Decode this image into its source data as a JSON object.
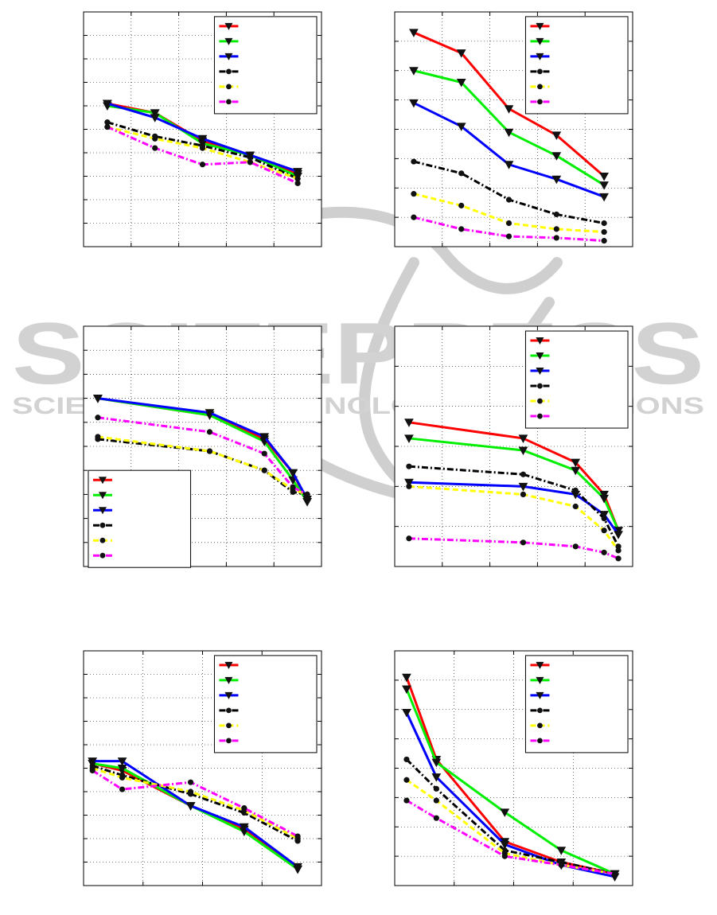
{
  "watermark": {
    "word1": "SCITEPRESS",
    "word2": "SCIENCE AND TECHNOLOGY PUBLICATIONS"
  },
  "series_styles": [
    {
      "color": "#ff0000",
      "dash": "solid",
      "marker": "triangle"
    },
    {
      "color": "#00ee00",
      "dash": "solid",
      "marker": "triangle"
    },
    {
      "color": "#0000ff",
      "dash": "solid",
      "marker": "triangle"
    },
    {
      "color": "#000000",
      "dash": "dashdot",
      "marker": "circle"
    },
    {
      "color": "#ffff00",
      "dash": "dashed",
      "marker": "circle"
    },
    {
      "color": "#ff00ff",
      "dash": "dashdot",
      "marker": "circle"
    }
  ],
  "chart_data": [
    {
      "type": "line",
      "xlim": [
        0,
        10
      ],
      "ylim": [
        0,
        10
      ],
      "grid": true,
      "legend": "top-right",
      "series": [
        {
          "x": [
            1,
            3,
            5,
            7,
            9
          ],
          "y": [
            6.1,
            5.7,
            4.5,
            3.9,
            3.1
          ]
        },
        {
          "x": [
            1,
            3,
            5,
            7,
            9
          ],
          "y": [
            6.0,
            5.7,
            4.4,
            3.9,
            3.0
          ]
        },
        {
          "x": [
            1,
            3,
            5,
            7,
            9
          ],
          "y": [
            6.1,
            5.5,
            4.6,
            3.9,
            3.2
          ]
        },
        {
          "x": [
            1,
            3,
            5,
            7,
            9
          ],
          "y": [
            5.3,
            4.7,
            4.3,
            3.8,
            2.9
          ]
        },
        {
          "x": [
            1,
            3,
            5,
            7,
            9
          ],
          "y": [
            5.1,
            4.6,
            4.2,
            3.6,
            2.9
          ]
        },
        {
          "x": [
            1,
            3,
            5,
            7,
            9
          ],
          "y": [
            5.1,
            4.2,
            3.5,
            3.6,
            2.7
          ]
        }
      ]
    },
    {
      "type": "line",
      "xlim": [
        0,
        10
      ],
      "ylim": [
        0,
        8
      ],
      "grid": true,
      "legend": "top-right",
      "series": [
        {
          "x": [
            0.8,
            2.8,
            4.8,
            6.8,
            8.8
          ],
          "y": [
            7.3,
            6.6,
            4.7,
            3.8,
            2.4
          ]
        },
        {
          "x": [
            0.8,
            2.8,
            4.8,
            6.8,
            8.8
          ],
          "y": [
            6.0,
            5.6,
            3.9,
            3.1,
            2.1
          ]
        },
        {
          "x": [
            0.8,
            2.8,
            4.8,
            6.8,
            8.8
          ],
          "y": [
            4.9,
            4.1,
            2.8,
            2.3,
            1.7
          ]
        },
        {
          "x": [
            0.8,
            2.8,
            4.8,
            6.8,
            8.8
          ],
          "y": [
            2.9,
            2.5,
            1.6,
            1.1,
            0.8
          ]
        },
        {
          "x": [
            0.8,
            2.8,
            4.8,
            6.8,
            8.8
          ],
          "y": [
            1.8,
            1.4,
            0.8,
            0.6,
            0.5
          ]
        },
        {
          "x": [
            0.8,
            2.8,
            4.8,
            6.8,
            8.8
          ],
          "y": [
            1.0,
            0.6,
            0.35,
            0.3,
            0.2
          ]
        }
      ]
    },
    {
      "type": "line",
      "xlim": [
        0,
        10
      ],
      "ylim": [
        0,
        10
      ],
      "grid": true,
      "legend": "bottom-left",
      "series": [
        {
          "x": [
            0.6,
            5.3,
            7.6,
            8.8,
            9.4
          ],
          "y": [
            7.0,
            6.3,
            5.3,
            3.9,
            2.7
          ]
        },
        {
          "x": [
            0.6,
            5.3,
            7.6,
            8.8,
            9.4
          ],
          "y": [
            7.0,
            6.3,
            5.2,
            3.6,
            2.7
          ]
        },
        {
          "x": [
            0.6,
            5.3,
            7.6,
            8.8,
            9.4
          ],
          "y": [
            7.0,
            6.4,
            5.4,
            3.9,
            2.8
          ]
        },
        {
          "x": [
            0.6,
            5.3,
            7.6,
            8.8,
            9.4
          ],
          "y": [
            5.3,
            4.8,
            4.0,
            3.1,
            3.0
          ]
        },
        {
          "x": [
            0.6,
            5.3,
            7.6,
            8.8,
            9.4
          ],
          "y": [
            5.4,
            4.8,
            4.0,
            3.2,
            3.0
          ]
        },
        {
          "x": [
            0.6,
            5.3,
            7.6,
            8.8,
            9.4
          ],
          "y": [
            6.2,
            5.6,
            4.7,
            3.3,
            3.0
          ]
        }
      ]
    },
    {
      "type": "line",
      "xlim": [
        0,
        10
      ],
      "ylim": [
        0,
        6
      ],
      "grid": true,
      "legend": "top-right",
      "series": [
        {
          "x": [
            0.6,
            5.4,
            7.6,
            8.8,
            9.4
          ],
          "y": [
            3.6,
            3.2,
            2.6,
            1.8,
            0.9
          ]
        },
        {
          "x": [
            0.6,
            5.4,
            7.6,
            8.8,
            9.4
          ],
          "y": [
            3.2,
            2.9,
            2.4,
            1.7,
            0.9
          ]
        },
        {
          "x": [
            0.6,
            5.4,
            7.6,
            8.8,
            9.4
          ],
          "y": [
            2.1,
            2.0,
            1.8,
            1.3,
            0.8
          ]
        },
        {
          "x": [
            0.6,
            5.4,
            7.6,
            8.8,
            9.4
          ],
          "y": [
            2.5,
            2.3,
            1.9,
            1.2,
            0.5
          ]
        },
        {
          "x": [
            0.6,
            5.4,
            7.6,
            8.8,
            9.4
          ],
          "y": [
            2.0,
            1.8,
            1.5,
            0.9,
            0.4
          ]
        },
        {
          "x": [
            0.6,
            5.4,
            7.6,
            8.8,
            9.4
          ],
          "y": [
            0.7,
            0.6,
            0.5,
            0.35,
            0.2
          ]
        }
      ]
    },
    {
      "type": "line",
      "xlim": [
        0,
        8
      ],
      "ylim": [
        0,
        10
      ],
      "grid": true,
      "legend": "top-right",
      "series": [
        {
          "x": [
            0.3,
            1.3,
            3.6,
            5.4,
            7.2
          ],
          "y": [
            5.2,
            4.9,
            3.4,
            2.4,
            0.7
          ]
        },
        {
          "x": [
            0.3,
            1.3,
            3.6,
            5.4,
            7.2
          ],
          "y": [
            5.2,
            5.0,
            3.4,
            2.3,
            0.7
          ]
        },
        {
          "x": [
            0.3,
            1.3,
            3.6,
            5.4,
            7.2
          ],
          "y": [
            5.3,
            5.3,
            3.4,
            2.5,
            0.8
          ]
        },
        {
          "x": [
            0.3,
            1.3,
            3.6,
            5.4,
            7.2
          ],
          "y": [
            5.1,
            4.7,
            3.9,
            3.1,
            1.9
          ]
        },
        {
          "x": [
            0.3,
            1.3,
            3.6,
            5.4,
            7.2
          ],
          "y": [
            5.0,
            4.6,
            4.0,
            3.2,
            2.0
          ]
        },
        {
          "x": [
            0.3,
            1.3,
            3.6,
            5.4,
            7.2
          ],
          "y": [
            4.9,
            4.1,
            4.4,
            3.3,
            2.1
          ]
        }
      ]
    },
    {
      "type": "line",
      "xlim": [
        0,
        8
      ],
      "ylim": [
        0,
        8
      ],
      "grid": true,
      "legend": "top-right",
      "series": [
        {
          "x": [
            0.4,
            1.4,
            3.7,
            5.6,
            7.4
          ],
          "y": [
            7.1,
            4.3,
            1.5,
            0.8,
            0.4
          ]
        },
        {
          "x": [
            0.4,
            1.4,
            3.7,
            5.6,
            7.4
          ],
          "y": [
            6.7,
            4.2,
            2.5,
            1.2,
            0.4
          ]
        },
        {
          "x": [
            0.4,
            1.4,
            3.7,
            5.6,
            7.4
          ],
          "y": [
            5.9,
            3.7,
            1.4,
            0.7,
            0.3
          ]
        },
        {
          "x": [
            0.4,
            1.4,
            3.7,
            5.6,
            7.4
          ],
          "y": [
            4.3,
            3.3,
            1.2,
            0.8,
            0.4
          ]
        },
        {
          "x": [
            0.4,
            1.4,
            3.7,
            5.6,
            7.4
          ],
          "y": [
            3.6,
            2.9,
            1.1,
            0.7,
            0.4
          ]
        },
        {
          "x": [
            0.4,
            1.4,
            3.7,
            5.6,
            7.4
          ],
          "y": [
            2.9,
            2.3,
            1.0,
            0.7,
            0.4
          ]
        }
      ]
    }
  ]
}
